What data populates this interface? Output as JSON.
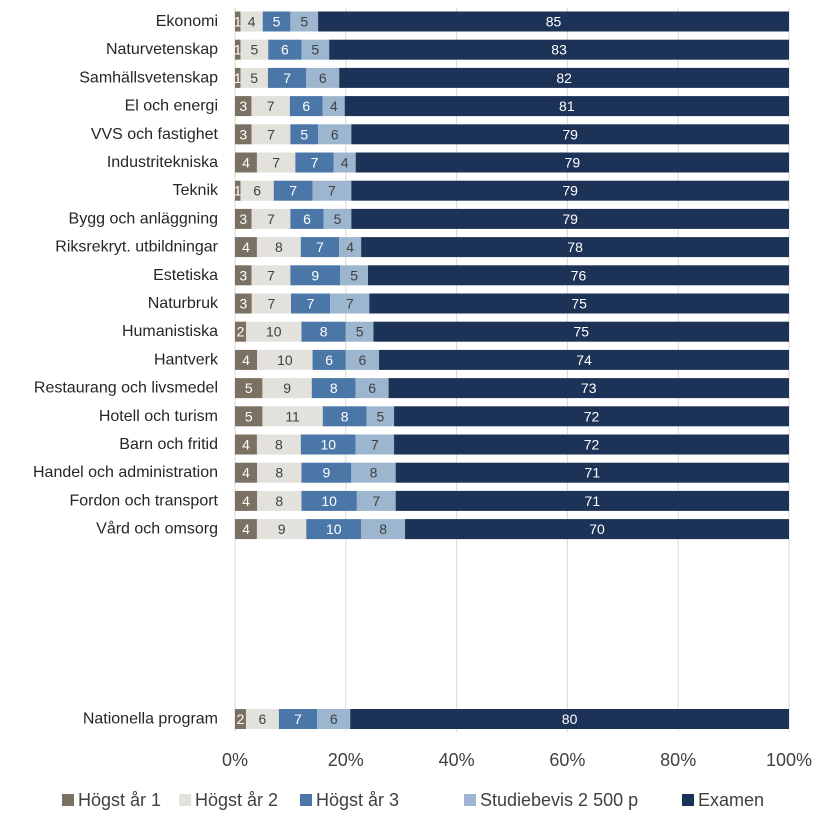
{
  "chart_data": {
    "type": "bar",
    "orientation": "horizontal",
    "stacked": "percent",
    "categories": [
      "Ekonomi",
      "Naturvetenskap",
      "Samhällsvetenskap",
      "El och energi",
      "VVS och fastighet",
      "Industritekniska",
      "Teknik",
      "Bygg och anläggning",
      "Riksrekryt. utbildningar",
      "Estetiska",
      "Naturbruk",
      "Humanistiska",
      "Hantverk",
      "Restaurang och livsmedel",
      "Hotell och turism",
      "Barn och fritid",
      "Handel och administration",
      "Fordon och transport",
      "Vård och omsorg",
      "Nationella program"
    ],
    "series": [
      {
        "name": "Högst år 1",
        "color": "#7a7162",
        "label_color": "#ffffff",
        "values": [
          1,
          1,
          1,
          3,
          3,
          4,
          1,
          3,
          4,
          3,
          3,
          2,
          4,
          5,
          5,
          4,
          4,
          4,
          4,
          2
        ]
      },
      {
        "name": "Högst år 2",
        "color": "#e3e1dc",
        "label_color": "#404040",
        "values": [
          4,
          5,
          5,
          7,
          7,
          7,
          6,
          7,
          8,
          7,
          7,
          10,
          10,
          9,
          11,
          8,
          8,
          8,
          9,
          6
        ]
      },
      {
        "name": "Högst år 3",
        "color": "#4a77a8",
        "label_color": "#ffffff",
        "values": [
          5,
          6,
          7,
          6,
          5,
          7,
          7,
          6,
          7,
          9,
          7,
          8,
          6,
          8,
          8,
          10,
          9,
          10,
          10,
          7
        ]
      },
      {
        "name": "Studiebevis 2 500 p",
        "color": "#9db6cf",
        "label_color": "#404040",
        "values": [
          5,
          5,
          6,
          4,
          6,
          4,
          7,
          5,
          4,
          5,
          7,
          5,
          6,
          6,
          5,
          7,
          8,
          7,
          8,
          6
        ]
      },
      {
        "name": "Examen",
        "color": "#1d3257",
        "label_color": "#ffffff",
        "values": [
          85,
          83,
          82,
          81,
          79,
          79,
          79,
          79,
          78,
          76,
          75,
          75,
          74,
          73,
          72,
          72,
          71,
          71,
          70,
          80
        ]
      }
    ],
    "xaxis": {
      "ticks": [
        "0%",
        "20%",
        "40%",
        "60%",
        "80%",
        "100%"
      ],
      "range": [
        0,
        100
      ]
    },
    "legend_position": "bottom",
    "gridlines": "vertical"
  }
}
